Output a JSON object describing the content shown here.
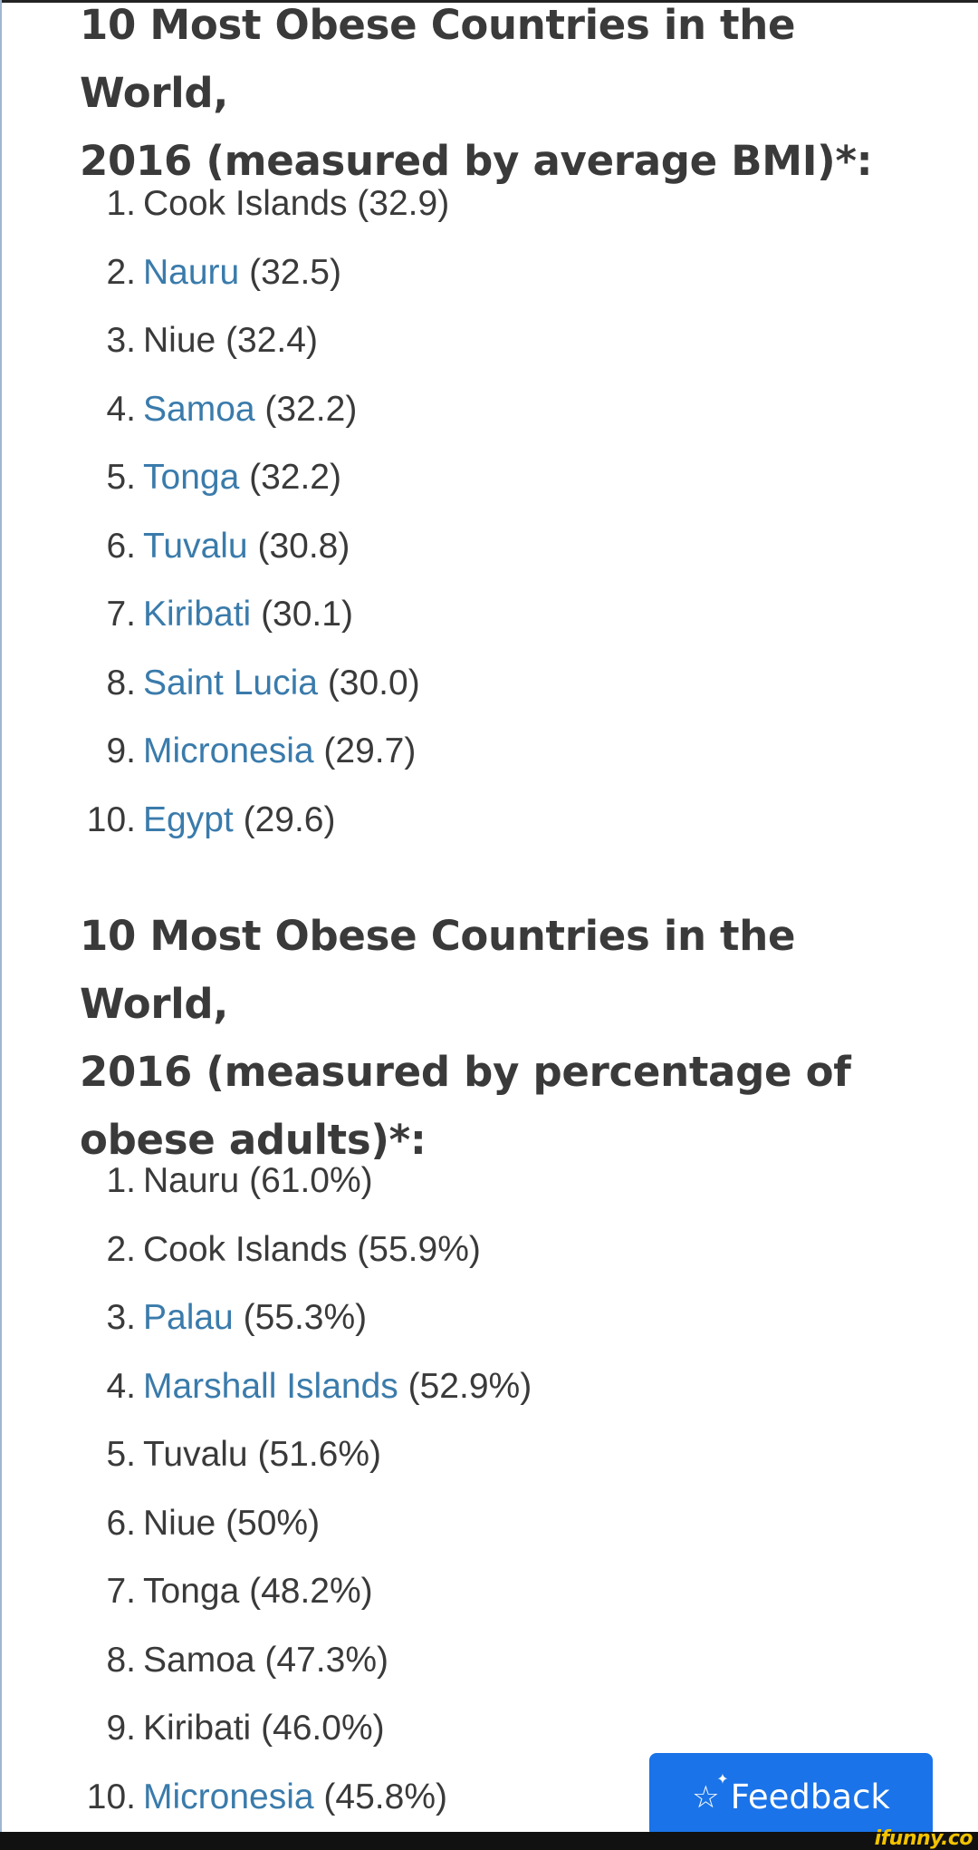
{
  "section1": {
    "heading_line1": "10 Most Obese Countries in the World,",
    "heading_line2": "2016 (measured by average BMI)*:",
    "items": [
      {
        "num": "1.",
        "name": "Cook Islands",
        "value": "(32.9)",
        "link": false
      },
      {
        "num": "2.",
        "name": "Nauru",
        "value": "(32.5)",
        "link": true
      },
      {
        "num": "3.",
        "name": "Niue",
        "value": "(32.4)",
        "link": false
      },
      {
        "num": "4.",
        "name": "Samoa",
        "value": "(32.2)",
        "link": true
      },
      {
        "num": "5.",
        "name": "Tonga",
        "value": "(32.2)",
        "link": true
      },
      {
        "num": "6.",
        "name": "Tuvalu",
        "value": "(30.8)",
        "link": true
      },
      {
        "num": "7.",
        "name": "Kiribati",
        "value": "(30.1)",
        "link": true
      },
      {
        "num": "8.",
        "name": "Saint Lucia",
        "value": "(30.0)",
        "link": true
      },
      {
        "num": "9.",
        "name": "Micronesia",
        "value": "(29.7)",
        "link": true
      },
      {
        "num": "10.",
        "name": "Egypt",
        "value": "(29.6)",
        "link": true
      }
    ]
  },
  "section2": {
    "heading_line1": "10 Most Obese Countries in the World,",
    "heading_line2": "2016 (measured by percentage of",
    "heading_line3": "obese adults)*:",
    "items": [
      {
        "num": "1.",
        "name": "Nauru",
        "value": "(61.0%)",
        "link": false
      },
      {
        "num": "2.",
        "name": "Cook Islands",
        "value": "(55.9%)",
        "link": false
      },
      {
        "num": "3.",
        "name": "Palau",
        "value": "(55.3%)",
        "link": true
      },
      {
        "num": "4.",
        "name": "Marshall Islands",
        "value": "(52.9%)",
        "link": true
      },
      {
        "num": "5.",
        "name": "Tuvalu",
        "value": "(51.6%)",
        "link": false
      },
      {
        "num": "6.",
        "name": "Niue",
        "value": "(50%)",
        "link": false
      },
      {
        "num": "7.",
        "name": "Tonga",
        "value": "(48.2%)",
        "link": false
      },
      {
        "num": "8.",
        "name": "Samoa",
        "value": "(47.3%)",
        "link": false
      },
      {
        "num": "9.",
        "name": "Kiribati",
        "value": "(46.0%)",
        "link": false
      },
      {
        "num": "10.",
        "name": "Micronesia",
        "value": "(45.8%)",
        "link": true
      }
    ]
  },
  "feedback": {
    "label": "Feedback",
    "icon": "sparkle-star-icon"
  },
  "watermark": "ifunny.co",
  "colors": {
    "text": "#3a3a3a",
    "link": "#3a7bab",
    "button": "#1a73e8",
    "watermark": "#f2c300"
  }
}
